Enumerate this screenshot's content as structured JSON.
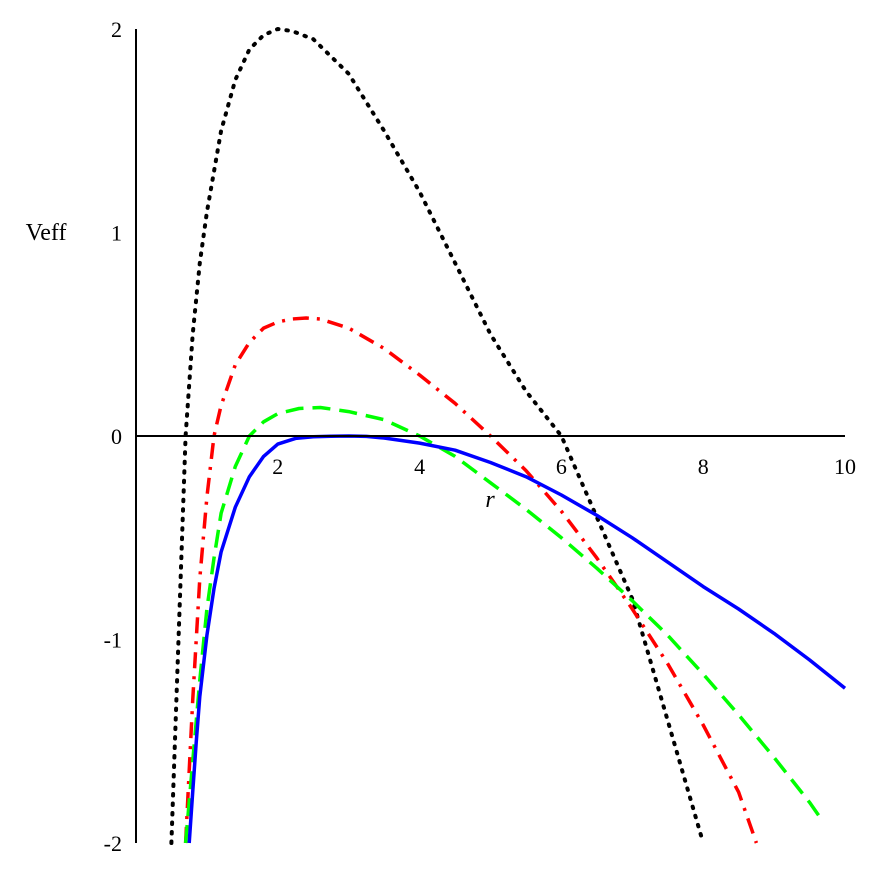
{
  "chart_data": {
    "type": "line",
    "title": "",
    "xlabel": "r",
    "ylabel": "Veff",
    "xlim": [
      0,
      10
    ],
    "ylim": [
      -2,
      2
    ],
    "x_ticks": [
      2,
      4,
      6,
      8,
      10
    ],
    "y_ticks": [
      -2,
      -1,
      0,
      1,
      2
    ],
    "grid": false,
    "legend": "none",
    "series": [
      {
        "style": "dotted",
        "color": "#000000",
        "x": [
          0.5,
          0.6,
          0.7,
          0.8,
          0.9,
          1.0,
          1.2,
          1.4,
          1.6,
          1.8,
          2.0,
          2.2,
          2.5,
          3.0,
          3.5,
          4.0,
          4.5,
          5.0,
          5.5,
          6.0,
          6.5,
          7.0,
          7.5,
          8.0
        ],
        "y": [
          -2.0,
          -1.0,
          0.0,
          0.5,
          0.85,
          1.1,
          1.5,
          1.75,
          1.9,
          1.97,
          2.0,
          1.99,
          1.95,
          1.78,
          1.5,
          1.2,
          0.85,
          0.5,
          0.22,
          0.0,
          -0.4,
          -0.8,
          -1.4,
          -2.0
        ]
      },
      {
        "style": "dashdot",
        "color": "#ff0000",
        "x": [
          0.7,
          0.8,
          0.9,
          1.0,
          1.1,
          1.2,
          1.4,
          1.6,
          1.8,
          2.0,
          2.2,
          2.4,
          2.6,
          3.0,
          3.5,
          4.0,
          4.5,
          5.0,
          5.5,
          6.0,
          6.5,
          7.0,
          7.5,
          8.0,
          8.5,
          8.75
        ],
        "y": [
          -2.0,
          -1.3,
          -0.7,
          -0.3,
          0.0,
          0.15,
          0.35,
          0.46,
          0.53,
          0.56,
          0.575,
          0.58,
          0.575,
          0.53,
          0.43,
          0.3,
          0.16,
          0.0,
          -0.17,
          -0.37,
          -0.6,
          -0.85,
          -1.12,
          -1.42,
          -1.75,
          -2.0
        ]
      },
      {
        "style": "dashed",
        "color": "#00ff00",
        "x": [
          0.7,
          0.8,
          0.9,
          1.0,
          1.1,
          1.2,
          1.4,
          1.6,
          1.8,
          2.0,
          2.3,
          2.6,
          3.0,
          3.5,
          4.0,
          4.5,
          5.0,
          5.5,
          6.0,
          6.5,
          7.0,
          7.5,
          8.0,
          8.5,
          9.0,
          9.5,
          9.7
        ],
        "y": [
          -2.0,
          -1.6,
          -1.2,
          -0.85,
          -0.6,
          -0.38,
          -0.15,
          0.0,
          0.07,
          0.11,
          0.135,
          0.14,
          0.12,
          0.08,
          0.0,
          -0.1,
          -0.23,
          -0.36,
          -0.5,
          -0.65,
          -0.81,
          -0.98,
          -1.17,
          -1.37,
          -1.58,
          -1.8,
          -1.9
        ]
      },
      {
        "style": "solid",
        "color": "#0000ff",
        "x": [
          0.75,
          0.8,
          0.85,
          0.9,
          1.0,
          1.1,
          1.2,
          1.4,
          1.6,
          1.8,
          2.0,
          2.25,
          2.5,
          2.75,
          3.0,
          3.25,
          3.5,
          4.0,
          4.5,
          5.0,
          5.5,
          6.0,
          6.5,
          7.0,
          7.5,
          8.0,
          8.5,
          9.0,
          9.5,
          10.0
        ],
        "y": [
          -2.0,
          -1.75,
          -1.5,
          -1.28,
          -0.98,
          -0.75,
          -0.57,
          -0.35,
          -0.2,
          -0.1,
          -0.04,
          -0.012,
          -0.004,
          -0.001,
          0.0,
          -0.002,
          -0.01,
          -0.035,
          -0.07,
          -0.13,
          -0.2,
          -0.29,
          -0.39,
          -0.5,
          -0.62,
          -0.74,
          -0.85,
          -0.97,
          -1.1,
          -1.24
        ]
      }
    ]
  }
}
